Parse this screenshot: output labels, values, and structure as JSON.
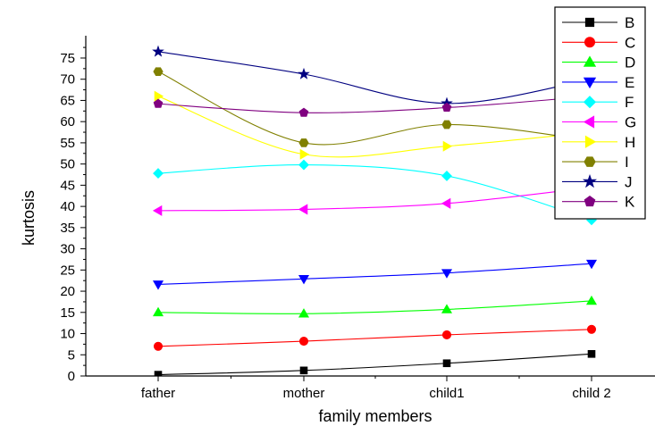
{
  "chart_data": {
    "type": "line",
    "categories": [
      "father",
      "mother",
      "child1",
      "child 2"
    ],
    "xlabel": "family members",
    "ylabel": "kurtosis",
    "ylim": [
      0,
      78
    ],
    "yticks": [
      0,
      5,
      10,
      15,
      20,
      25,
      30,
      35,
      40,
      45,
      50,
      55,
      60,
      65,
      70,
      75
    ],
    "grid": false,
    "legend_position": "top-right",
    "series": [
      {
        "name": "B",
        "color": "#000000",
        "marker": "square",
        "values": [
          0.3,
          1.3,
          3.0,
          5.2
        ]
      },
      {
        "name": "C",
        "color": "#ff0000",
        "marker": "circle",
        "values": [
          7.0,
          8.2,
          9.7,
          11.0
        ]
      },
      {
        "name": "D",
        "color": "#00ff00",
        "marker": "triangle-up",
        "values": [
          15.0,
          14.7,
          15.7,
          17.7
        ]
      },
      {
        "name": "E",
        "color": "#0000ff",
        "marker": "triangle-down",
        "values": [
          21.6,
          22.9,
          24.3,
          26.5
        ]
      },
      {
        "name": "F",
        "color": "#00ffff",
        "marker": "diamond",
        "values": [
          47.8,
          49.8,
          47.2,
          36.8
        ]
      },
      {
        "name": "G",
        "color": "#ff00ff",
        "marker": "triangle-left",
        "values": [
          39.0,
          39.3,
          40.7,
          44.5
        ]
      },
      {
        "name": "H",
        "color": "#ffff00",
        "marker": "triangle-right",
        "values": [
          66.0,
          52.3,
          54.2,
          57.5
        ]
      },
      {
        "name": "I",
        "color": "#808000",
        "marker": "hexagon",
        "values": [
          71.8,
          55.0,
          59.3,
          55.5
        ]
      },
      {
        "name": "J",
        "color": "#000080",
        "marker": "star",
        "values": [
          76.5,
          71.2,
          64.3,
          70.0
        ]
      },
      {
        "name": "K",
        "color": "#800080",
        "marker": "pentagon",
        "values": [
          64.2,
          62.1,
          63.3,
          66.0
        ]
      }
    ]
  }
}
